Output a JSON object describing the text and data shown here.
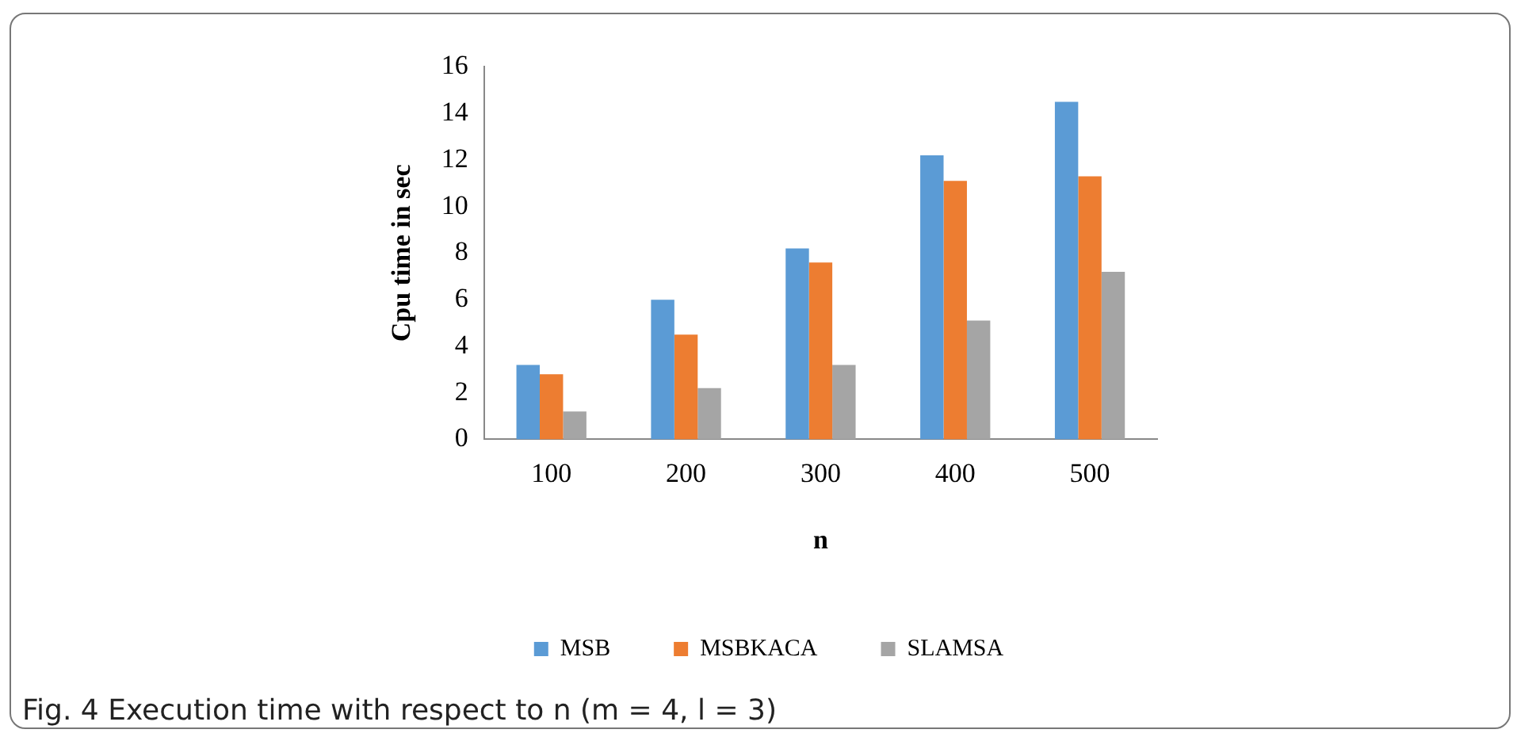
{
  "chart_data": {
    "type": "bar",
    "xlabel": "n",
    "ylabel": "Cpu time in sec",
    "categories": [
      "100",
      "200",
      "300",
      "400",
      "500"
    ],
    "series": [
      {
        "name": "MSB",
        "color": "#5b9bd5",
        "values": [
          3.2,
          6.0,
          8.2,
          12.2,
          14.5
        ]
      },
      {
        "name": "MSBKACA",
        "color": "#ed7d31",
        "values": [
          2.8,
          4.5,
          7.6,
          11.1,
          11.3
        ]
      },
      {
        "name": "SLAMSA",
        "color": "#a5a5a5",
        "values": [
          1.2,
          2.2,
          3.2,
          5.1,
          7.2
        ]
      }
    ],
    "ylim": [
      0,
      16
    ],
    "yticks": [
      0,
      2,
      4,
      6,
      8,
      10,
      12,
      14,
      16
    ],
    "grid": false,
    "legend": "bottom",
    "annotations": [
      "Fig. 4  Execution time with respect to n (m = 4, l = 3)"
    ]
  }
}
